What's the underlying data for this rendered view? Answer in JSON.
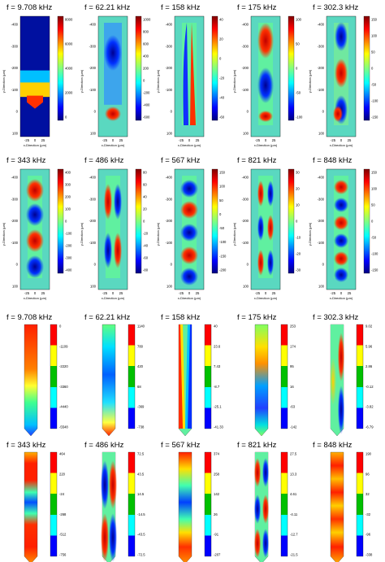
{
  "figure": {
    "row1_titles": [
      "f = 9.708 kHz",
      "f = 62.21 kHz",
      "f = 158 kHz",
      "f = 175 kHz",
      "f = 302.3 kHz"
    ],
    "row2_titles": [
      "f = 343 kHz",
      "f = 486 kHz",
      "f = 567 kHz",
      "f = 821 kHz",
      "f = 848 kHz"
    ],
    "row3_titles": [
      "f = 9.708 kHz",
      "f = 62.21 kHz",
      "f = 158 kHz",
      "f = 175 kHz",
      "f = 302.3 kHz"
    ],
    "row4_titles": [
      "f = 343 kHz",
      "f = 486 kHz",
      "f = 567 kHz",
      "f = 821 kHz",
      "f = 848 kHz"
    ],
    "xlabel": "x-Direction (µm)",
    "ylabel": "y-Direction (µm)",
    "x_ticks": [
      "-25",
      "0",
      "25"
    ],
    "y_ticks": [
      "-400",
      "-300",
      "-200",
      "-100",
      "0",
      "100"
    ],
    "row1_colorbars": [
      [
        "8000",
        "6000",
        "4000",
        "2000",
        "0"
      ],
      [
        "1000",
        "800",
        "600",
        "400",
        "200",
        "0",
        "-200",
        "-400",
        "-600"
      ],
      [
        "40",
        "20",
        "0",
        "-20",
        "-40",
        "-60"
      ],
      [
        "100",
        "50",
        "0",
        "-50",
        "-100"
      ],
      [
        "150",
        "100",
        "50",
        "0",
        "-50",
        "-100",
        "-150"
      ]
    ],
    "row2_colorbars": [
      [
        "400",
        "300",
        "200",
        "100",
        "0",
        "-100",
        "-200",
        "-300",
        "-400"
      ],
      [
        "80",
        "60",
        "40",
        "20",
        "0",
        "-20",
        "-40",
        "-60",
        "-80"
      ],
      [
        "150",
        "100",
        "50",
        "0",
        "-50",
        "-100",
        "-150",
        "-200"
      ],
      [
        "30",
        "20",
        "10",
        "0",
        "-10",
        "-20",
        "-30"
      ],
      [
        "150",
        "100",
        "50",
        "0",
        "-50",
        "-100",
        "-150"
      ]
    ],
    "row3_colorbars": [
      [
        "0",
        "-1109",
        "-2220",
        "-3360",
        "-4440",
        "-5548"
      ],
      [
        "1140",
        "780",
        "420",
        "68",
        "-369",
        "-738"
      ],
      [
        "40",
        "23.6",
        "7.43",
        "-8.7",
        "-25.1",
        "-41.33"
      ],
      [
        "253",
        "174",
        "95",
        "16",
        "-63",
        "-142"
      ],
      [
        "9.02",
        "5.96",
        "2.86",
        "-0.12",
        "-3.82",
        "-6.79"
      ]
    ],
    "row4_colorbars": [
      [
        "464",
        "220",
        "-24",
        "-268",
        "-512",
        "-756"
      ],
      [
        "72.5",
        "43.5",
        "14.5",
        "-14.5",
        "-43.5",
        "-72.5"
      ],
      [
        "374",
        "258",
        "142",
        "26",
        "-91",
        "-207"
      ],
      [
        "27.5",
        "13.3",
        "4.61",
        "-4.11",
        "-12.7",
        "-21.5"
      ],
      [
        "190",
        "96",
        "32",
        "-32",
        "-96",
        "-338"
      ]
    ]
  }
}
